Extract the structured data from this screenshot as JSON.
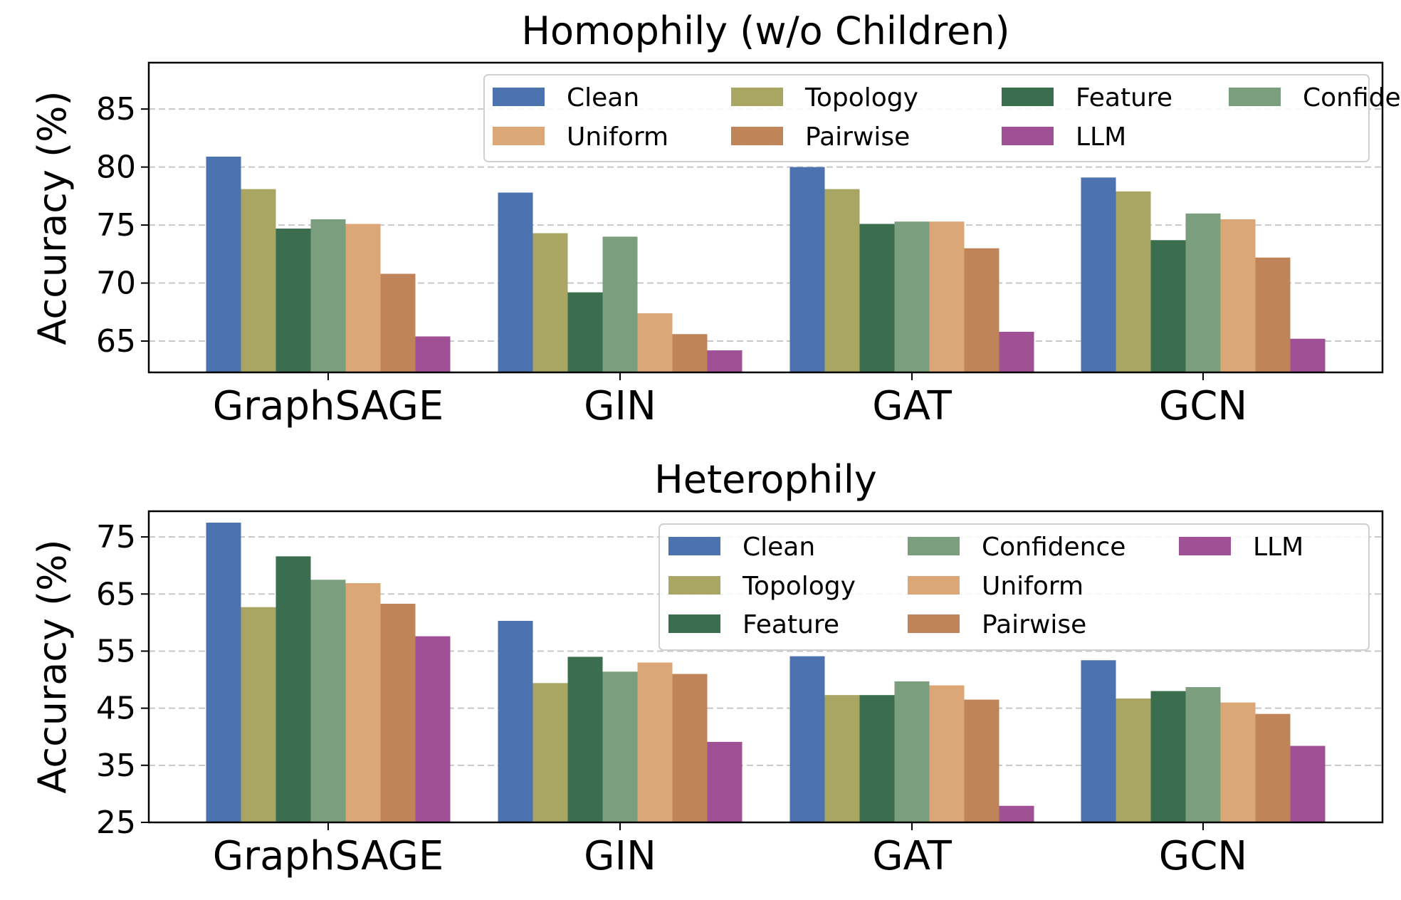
{
  "chart_data": [
    {
      "type": "bar",
      "title": "Homophily (w/o Children)",
      "xlabel": "",
      "ylabel": "Accuracy (%)",
      "ylim": [
        62.3,
        89.0
      ],
      "yticks": [
        65,
        70,
        75,
        80,
        85
      ],
      "grid": true,
      "legend_position": "top-right",
      "legend_columns": 4,
      "categories": [
        "GraphSAGE",
        "GIN",
        "GAT",
        "GCN"
      ],
      "series": [
        {
          "name": "Clean",
          "color": "#4c72b0",
          "values": [
            80.9,
            77.8,
            80.0,
            79.1
          ]
        },
        {
          "name": "Topology",
          "color": "#a9a562",
          "values": [
            78.1,
            74.3,
            78.1,
            77.9
          ]
        },
        {
          "name": "Feature",
          "color": "#3b6e4e",
          "values": [
            74.7,
            69.2,
            75.1,
            73.7
          ]
        },
        {
          "name": "Confidence",
          "color": "#7a9e7e",
          "values": [
            75.5,
            74.0,
            75.3,
            76.0
          ]
        },
        {
          "name": "Uniform",
          "color": "#dca777",
          "values": [
            75.1,
            67.4,
            75.3,
            75.5
          ]
        },
        {
          "name": "Pairwise",
          "color": "#bf8558",
          "values": [
            70.8,
            65.6,
            73.0,
            72.2
          ]
        },
        {
          "name": "LLM",
          "color": "#a05195",
          "values": [
            65.4,
            64.2,
            65.8,
            65.2
          ]
        }
      ]
    },
    {
      "type": "bar",
      "title": "Heterophily",
      "xlabel": "",
      "ylabel": "Accuracy (%)",
      "ylim": [
        25,
        79.5
      ],
      "yticks": [
        25,
        35,
        45,
        55,
        65,
        75
      ],
      "grid": true,
      "legend_position": "top-right",
      "legend_columns": 3,
      "categories": [
        "GraphSAGE",
        "GIN",
        "GAT",
        "GCN"
      ],
      "series": [
        {
          "name": "Clean",
          "color": "#4c72b0",
          "values": [
            77.5,
            60.3,
            54.1,
            53.4
          ]
        },
        {
          "name": "Topology",
          "color": "#a9a562",
          "values": [
            62.7,
            49.4,
            47.3,
            46.7
          ]
        },
        {
          "name": "Feature",
          "color": "#3b6e4e",
          "values": [
            71.6,
            54.0,
            47.3,
            48.0
          ]
        },
        {
          "name": "Confidence",
          "color": "#7a9e7e",
          "values": [
            67.5,
            51.4,
            49.7,
            48.7
          ]
        },
        {
          "name": "Uniform",
          "color": "#dca777",
          "values": [
            66.9,
            53.0,
            49.0,
            46.0
          ]
        },
        {
          "name": "Pairwise",
          "color": "#bf8558",
          "values": [
            63.3,
            51.0,
            46.5,
            44.0
          ]
        },
        {
          "name": "LLM",
          "color": "#a05195",
          "values": [
            57.6,
            39.1,
            27.9,
            38.4
          ]
        }
      ]
    }
  ]
}
